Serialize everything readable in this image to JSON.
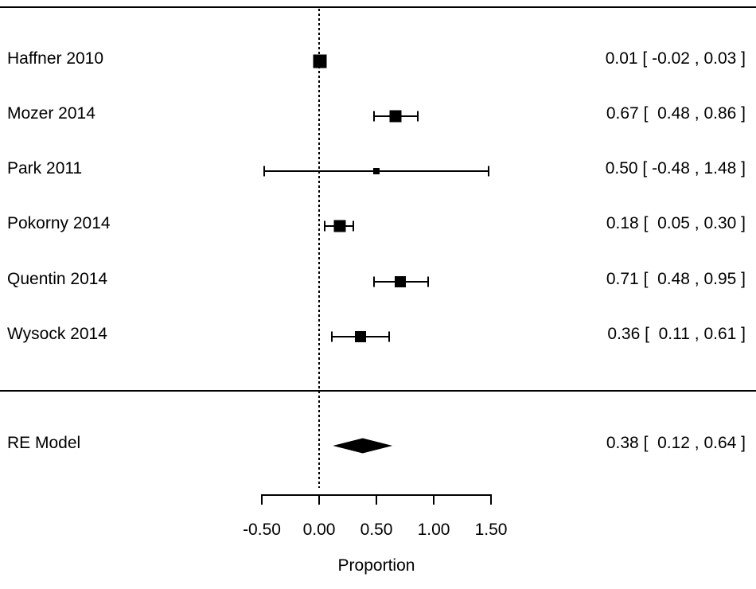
{
  "chart_data": {
    "type": "forest",
    "title": "",
    "xlabel": "Proportion",
    "axis_range": [
      -0.5,
      1.5
    ],
    "x_ticks": [
      -0.5,
      0.0,
      0.5,
      1.0,
      1.5
    ],
    "x_tick_labels": [
      "-0.50",
      "0.00",
      "0.50",
      "1.00",
      "1.50"
    ],
    "grid": false,
    "reference_line_x": 0.0,
    "studies": [
      {
        "label": "Haffner 2010",
        "estimate": 0.01,
        "ci_low": -0.02,
        "ci_high": 0.03,
        "annotation": "0.01 [ -0.02 , 0.03 ]",
        "marker_size_px": 17
      },
      {
        "label": "Mozer 2014",
        "estimate": 0.67,
        "ci_low": 0.48,
        "ci_high": 0.86,
        "annotation": "0.67 [  0.48 , 0.86 ]",
        "marker_size_px": 15
      },
      {
        "label": "Park 2011",
        "estimate": 0.5,
        "ci_low": -0.48,
        "ci_high": 1.48,
        "annotation": "0.50 [ -0.48 , 1.48 ]",
        "marker_size_px": 8
      },
      {
        "label": "Pokorny 2014",
        "estimate": 0.18,
        "ci_low": 0.05,
        "ci_high": 0.3,
        "annotation": "0.18 [  0.05 , 0.30 ]",
        "marker_size_px": 15
      },
      {
        "label": "Quentin 2014",
        "estimate": 0.71,
        "ci_low": 0.48,
        "ci_high": 0.95,
        "annotation": "0.71 [  0.48 , 0.95 ]",
        "marker_size_px": 14
      },
      {
        "label": "Wysock 2014",
        "estimate": 0.36,
        "ci_low": 0.11,
        "ci_high": 0.61,
        "annotation": "0.36 [  0.11 , 0.61 ]",
        "marker_size_px": 14
      }
    ],
    "summary": {
      "label": "RE Model",
      "estimate": 0.38,
      "ci_low": 0.12,
      "ci_high": 0.64,
      "annotation": "0.38 [  0.12 , 0.64 ]"
    },
    "colors": {
      "marker": "#000000",
      "line": "#000000",
      "text": "#000000",
      "background": "#ffffff"
    }
  }
}
